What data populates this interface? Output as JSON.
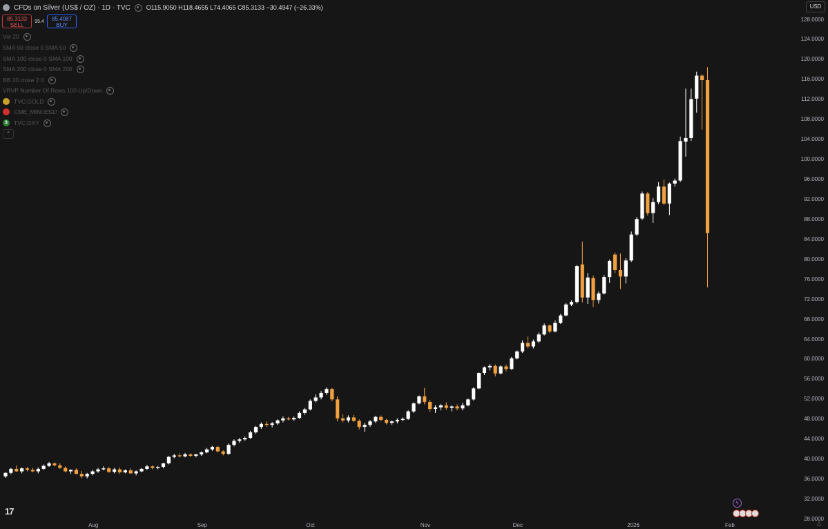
{
  "header": {
    "title": "CFDs on Silver (US$ / OZ) · 1D · TVC",
    "ohlc": "O115.9050 H118.4655 L74.4065 C85.3133 −30.4947 (−26.33%)"
  },
  "trade": {
    "sell_price": "85.3133",
    "sell_label": "SELL",
    "spread": "95.4",
    "buy_price": "85.4087",
    "buy_label": "BUY"
  },
  "indicators": [
    {
      "label": "Vol 20"
    },
    {
      "label": "SMA 50 close 0 SMA 50"
    },
    {
      "label": "SMA 100 close 0 SMA 100"
    },
    {
      "label": "SMA 200 close 0 SMA 200"
    },
    {
      "label": "BB 20 close 2 0"
    },
    {
      "label": "VRVP Number Of Rows 100 Up/Down"
    },
    {
      "label": "TVC:GOLD",
      "icon": "gold-coin-icon",
      "color": "#c9a227"
    },
    {
      "label": "CME_MINI:ES1!",
      "icon": "sp500-icon",
      "color": "#d32f2f"
    },
    {
      "label": "TVC:DXY",
      "icon": "dollar-icon",
      "color": "#2e7d32"
    }
  ],
  "price_axis": {
    "currency": "USD",
    "labels": [
      "128.0000",
      "124.0000",
      "120.0000",
      "116.0000",
      "112.0000",
      "108.0000",
      "104.0000",
      "100.0000",
      "96.0000",
      "92.0000",
      "88.0000",
      "84.0000",
      "80.0000",
      "76.0000",
      "72.0000",
      "68.0000",
      "64.0000",
      "60.0000",
      "56.0000",
      "52.0000",
      "48.0000",
      "44.0000",
      "40.0000",
      "36.0000",
      "32.0000",
      "28.0000"
    ]
  },
  "time_axis": {
    "labels": [
      "Aug",
      "Sep",
      "Oct",
      "Nov",
      "Dec",
      "2026",
      "Feb"
    ]
  },
  "colors": {
    "up": "#ffffff",
    "down": "#f0a040",
    "background": "#161616"
  },
  "logo": {
    "text": "17"
  },
  "chart_data": {
    "type": "candlestick",
    "title": "CFDs on Silver (US$ / OZ) · 1D · TVC",
    "ylim": [
      28,
      129
    ],
    "candles": [
      [
        36.6,
        37.4,
        36.3,
        37.3
      ],
      [
        37.3,
        38.3,
        37.0,
        38.1
      ],
      [
        38.1,
        38.8,
        37.5,
        37.6
      ],
      [
        37.6,
        38.4,
        37.2,
        38.2
      ],
      [
        38.2,
        38.5,
        37.6,
        37.9
      ],
      [
        37.9,
        38.3,
        37.4,
        37.6
      ],
      [
        37.6,
        38.4,
        37.2,
        38.1
      ],
      [
        38.1,
        39.0,
        37.9,
        38.7
      ],
      [
        38.7,
        39.5,
        38.5,
        39.2
      ],
      [
        39.2,
        39.4,
        38.6,
        38.8
      ],
      [
        38.8,
        39.2,
        38.1,
        38.3
      ],
      [
        38.3,
        38.6,
        37.4,
        37.6
      ],
      [
        37.6,
        38.0,
        37.1,
        37.9
      ],
      [
        37.9,
        38.2,
        37.0,
        37.1
      ],
      [
        37.1,
        37.7,
        36.2,
        36.6
      ],
      [
        36.6,
        37.3,
        36.2,
        37.1
      ],
      [
        37.1,
        37.9,
        36.8,
        37.6
      ],
      [
        37.6,
        38.3,
        37.3,
        38.0
      ],
      [
        38.0,
        38.6,
        37.8,
        38.2
      ],
      [
        38.2,
        38.5,
        37.3,
        37.5
      ],
      [
        37.5,
        38.3,
        37.2,
        38.0
      ],
      [
        38.0,
        38.4,
        37.1,
        37.4
      ],
      [
        37.4,
        38.0,
        37.2,
        37.8
      ],
      [
        37.8,
        38.2,
        37.1,
        37.2
      ],
      [
        37.2,
        37.8,
        36.8,
        37.6
      ],
      [
        37.6,
        38.3,
        37.4,
        38.1
      ],
      [
        38.1,
        38.9,
        37.9,
        38.6
      ],
      [
        38.6,
        38.8,
        38.0,
        38.3
      ],
      [
        38.3,
        38.7,
        38.0,
        38.5
      ],
      [
        38.5,
        39.3,
        38.2,
        39.2
      ],
      [
        39.2,
        40.7,
        39.0,
        40.5
      ],
      [
        40.5,
        41.1,
        40.2,
        40.8
      ],
      [
        40.8,
        41.2,
        40.4,
        40.6
      ],
      [
        40.6,
        41.3,
        40.4,
        41.0
      ],
      [
        41.0,
        41.2,
        40.5,
        40.7
      ],
      [
        40.7,
        41.1,
        40.4,
        41.0
      ],
      [
        41.0,
        41.6,
        40.7,
        41.4
      ],
      [
        41.4,
        42.3,
        41.2,
        42.0
      ],
      [
        42.0,
        42.7,
        41.7,
        42.5
      ],
      [
        42.5,
        42.7,
        41.4,
        41.6
      ],
      [
        41.6,
        41.8,
        40.8,
        41.1
      ],
      [
        41.1,
        43.2,
        40.9,
        42.9
      ],
      [
        42.9,
        44.0,
        42.6,
        43.7
      ],
      [
        43.7,
        44.3,
        43.3,
        44.0
      ],
      [
        44.0,
        44.6,
        43.7,
        44.3
      ],
      [
        44.3,
        45.7,
        44.1,
        45.4
      ],
      [
        45.4,
        46.7,
        45.1,
        46.5
      ],
      [
        46.5,
        47.4,
        46.1,
        47.1
      ],
      [
        47.1,
        47.6,
        46.5,
        46.9
      ],
      [
        46.9,
        47.5,
        46.4,
        47.2
      ],
      [
        47.2,
        48.0,
        46.9,
        47.8
      ],
      [
        47.8,
        48.6,
        47.4,
        48.2
      ],
      [
        48.2,
        48.5,
        47.8,
        48.0
      ],
      [
        48.0,
        48.6,
        47.7,
        48.3
      ],
      [
        48.3,
        49.6,
        48.1,
        49.3
      ],
      [
        49.3,
        50.3,
        48.9,
        50.0
      ],
      [
        50.0,
        52.0,
        49.8,
        51.7
      ],
      [
        51.7,
        53.0,
        51.4,
        52.4
      ],
      [
        52.4,
        53.7,
        52.0,
        53.3
      ],
      [
        53.3,
        54.4,
        52.9,
        54.1
      ],
      [
        54.1,
        54.3,
        51.6,
        52.0
      ],
      [
        52.0,
        52.6,
        47.6,
        48.2
      ],
      [
        48.2,
        49.0,
        47.4,
        47.8
      ],
      [
        47.8,
        48.8,
        47.4,
        48.4
      ],
      [
        48.4,
        48.9,
        47.5,
        47.7
      ],
      [
        47.7,
        48.0,
        46.0,
        46.5
      ],
      [
        46.5,
        47.3,
        45.5,
        46.9
      ],
      [
        46.9,
        47.9,
        46.5,
        47.6
      ],
      [
        47.6,
        48.7,
        47.3,
        48.5
      ],
      [
        48.5,
        48.8,
        47.6,
        47.9
      ],
      [
        47.9,
        48.1,
        47.0,
        47.3
      ],
      [
        47.3,
        47.8,
        46.9,
        47.6
      ],
      [
        47.6,
        48.2,
        47.2,
        47.9
      ],
      [
        47.9,
        48.4,
        47.6,
        48.1
      ],
      [
        48.1,
        49.8,
        47.9,
        49.6
      ],
      [
        49.6,
        51.4,
        49.3,
        51.2
      ],
      [
        51.2,
        52.8,
        51.0,
        52.6
      ],
      [
        52.6,
        54.3,
        51.0,
        51.5
      ],
      [
        51.5,
        51.9,
        49.5,
        50.1
      ],
      [
        50.1,
        50.8,
        49.3,
        50.4
      ],
      [
        50.4,
        51.1,
        49.8,
        50.8
      ],
      [
        50.8,
        51.4,
        49.9,
        50.3
      ],
      [
        50.3,
        50.8,
        49.6,
        50.6
      ],
      [
        50.6,
        51.0,
        49.8,
        50.2
      ],
      [
        50.2,
        51.3,
        49.8,
        50.8
      ],
      [
        50.8,
        52.2,
        50.6,
        52.0
      ],
      [
        52.0,
        54.4,
        51.8,
        54.2
      ],
      [
        54.2,
        57.4,
        54.0,
        57.3
      ],
      [
        57.3,
        58.6,
        56.9,
        58.4
      ],
      [
        58.4,
        59.1,
        57.8,
        58.7
      ],
      [
        58.7,
        59.0,
        56.6,
        57.2
      ],
      [
        57.2,
        58.8,
        57.0,
        58.6
      ],
      [
        58.6,
        59.0,
        57.6,
        58.1
      ],
      [
        58.1,
        60.5,
        57.9,
        60.2
      ],
      [
        60.2,
        61.8,
        60.0,
        61.6
      ],
      [
        61.6,
        63.8,
        61.3,
        63.3
      ],
      [
        63.3,
        64.6,
        62.2,
        62.6
      ],
      [
        62.6,
        64.0,
        62.2,
        63.6
      ],
      [
        63.6,
        65.4,
        63.3,
        65.0
      ],
      [
        65.0,
        67.2,
        64.8,
        66.8
      ],
      [
        66.8,
        67.0,
        65.3,
        65.6
      ],
      [
        65.6,
        67.8,
        65.4,
        67.3
      ],
      [
        67.3,
        69.1,
        67.1,
        68.8
      ],
      [
        68.8,
        71.3,
        68.6,
        71.0
      ],
      [
        71.0,
        71.8,
        70.7,
        71.5
      ],
      [
        71.5,
        78.9,
        71.2,
        78.7
      ],
      [
        79.0,
        83.6,
        71.4,
        72.4
      ],
      [
        72.4,
        77.3,
        71.1,
        76.4
      ],
      [
        76.3,
        76.8,
        70.5,
        71.9
      ],
      [
        71.9,
        73.6,
        71.2,
        73.2
      ],
      [
        73.2,
        76.9,
        73.0,
        76.5
      ],
      [
        76.5,
        80.0,
        75.3,
        79.7
      ],
      [
        81.0,
        81.4,
        77.3,
        77.9
      ],
      [
        77.9,
        81.2,
        74.1,
        76.6
      ],
      [
        76.6,
        80.3,
        75.2,
        79.8
      ],
      [
        79.8,
        85.6,
        79.5,
        85.0
      ],
      [
        85.0,
        88.5,
        84.7,
        88.1
      ],
      [
        88.2,
        93.6,
        87.9,
        93.2
      ],
      [
        93.2,
        93.5,
        88.8,
        89.3
      ],
      [
        89.3,
        92.3,
        87.3,
        91.5
      ],
      [
        91.5,
        95.5,
        91.1,
        94.6
      ],
      [
        94.6,
        96.0,
        90.9,
        91.2
      ],
      [
        91.2,
        95.4,
        88.9,
        95.2
      ],
      [
        95.2,
        96.2,
        94.6,
        95.8
      ],
      [
        95.8,
        104.6,
        95.5,
        103.7
      ],
      [
        103.6,
        114.2,
        100.6,
        104.3
      ],
      [
        104.3,
        114.2,
        103.7,
        112.1
      ],
      [
        112.2,
        117.6,
        109.4,
        116.8
      ],
      [
        116.8,
        117.1,
        106.0,
        115.9
      ],
      [
        115.9,
        118.5,
        74.4,
        85.3
      ]
    ],
    "x_labels": [
      "Aug",
      "Sep",
      "Oct",
      "Nov",
      "Dec",
      "2026",
      "Feb"
    ]
  }
}
